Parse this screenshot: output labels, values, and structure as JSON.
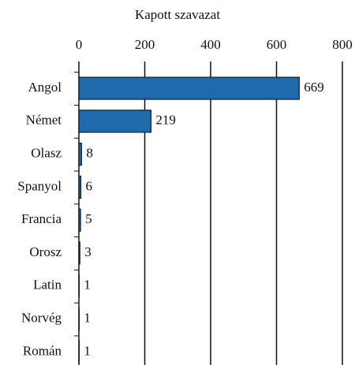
{
  "chart_data": {
    "type": "bar",
    "orientation": "horizontal",
    "x_label": "Kapott szavazat",
    "categories": [
      "Angol",
      "Német",
      "Olasz",
      "Spanyol",
      "Francia",
      "Orosz",
      "Latin",
      "Norvég",
      "Román"
    ],
    "values": [
      669,
      219,
      8,
      6,
      5,
      3,
      1,
      1,
      1
    ],
    "color": "#1f6aad",
    "xlim": [
      0,
      800
    ],
    "xticks": [
      0,
      200,
      400,
      600,
      800
    ],
    "grid": true
  }
}
